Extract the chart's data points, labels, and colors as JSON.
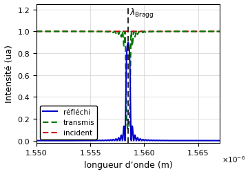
{
  "title": "",
  "xlabel": "longueur d’onde (m)",
  "ylabel": "Intensité (ua)",
  "xlim": [
    1.55e-06,
    1.567e-06
  ],
  "ylim": [
    -0.02,
    1.25
  ],
  "yticks": [
    0,
    0.2,
    0.4,
    0.6,
    0.8,
    1.0,
    1.2
  ],
  "xticks": [
    1.55e-06,
    1.555e-06,
    1.56e-06,
    1.565e-06
  ],
  "lambda_bragg": 1.5585e-06,
  "background_color": "#ffffff",
  "grid_color": "#d0d0d0",
  "line_incident_color": "#cc0000",
  "line_transmis_color": "#007700",
  "line_reflechi_color": "#0000cc",
  "legend_labels": [
    "réfléchi",
    "transmis",
    "incident"
  ],
  "figsize": [
    3.63,
    2.53
  ],
  "dpi": 100
}
